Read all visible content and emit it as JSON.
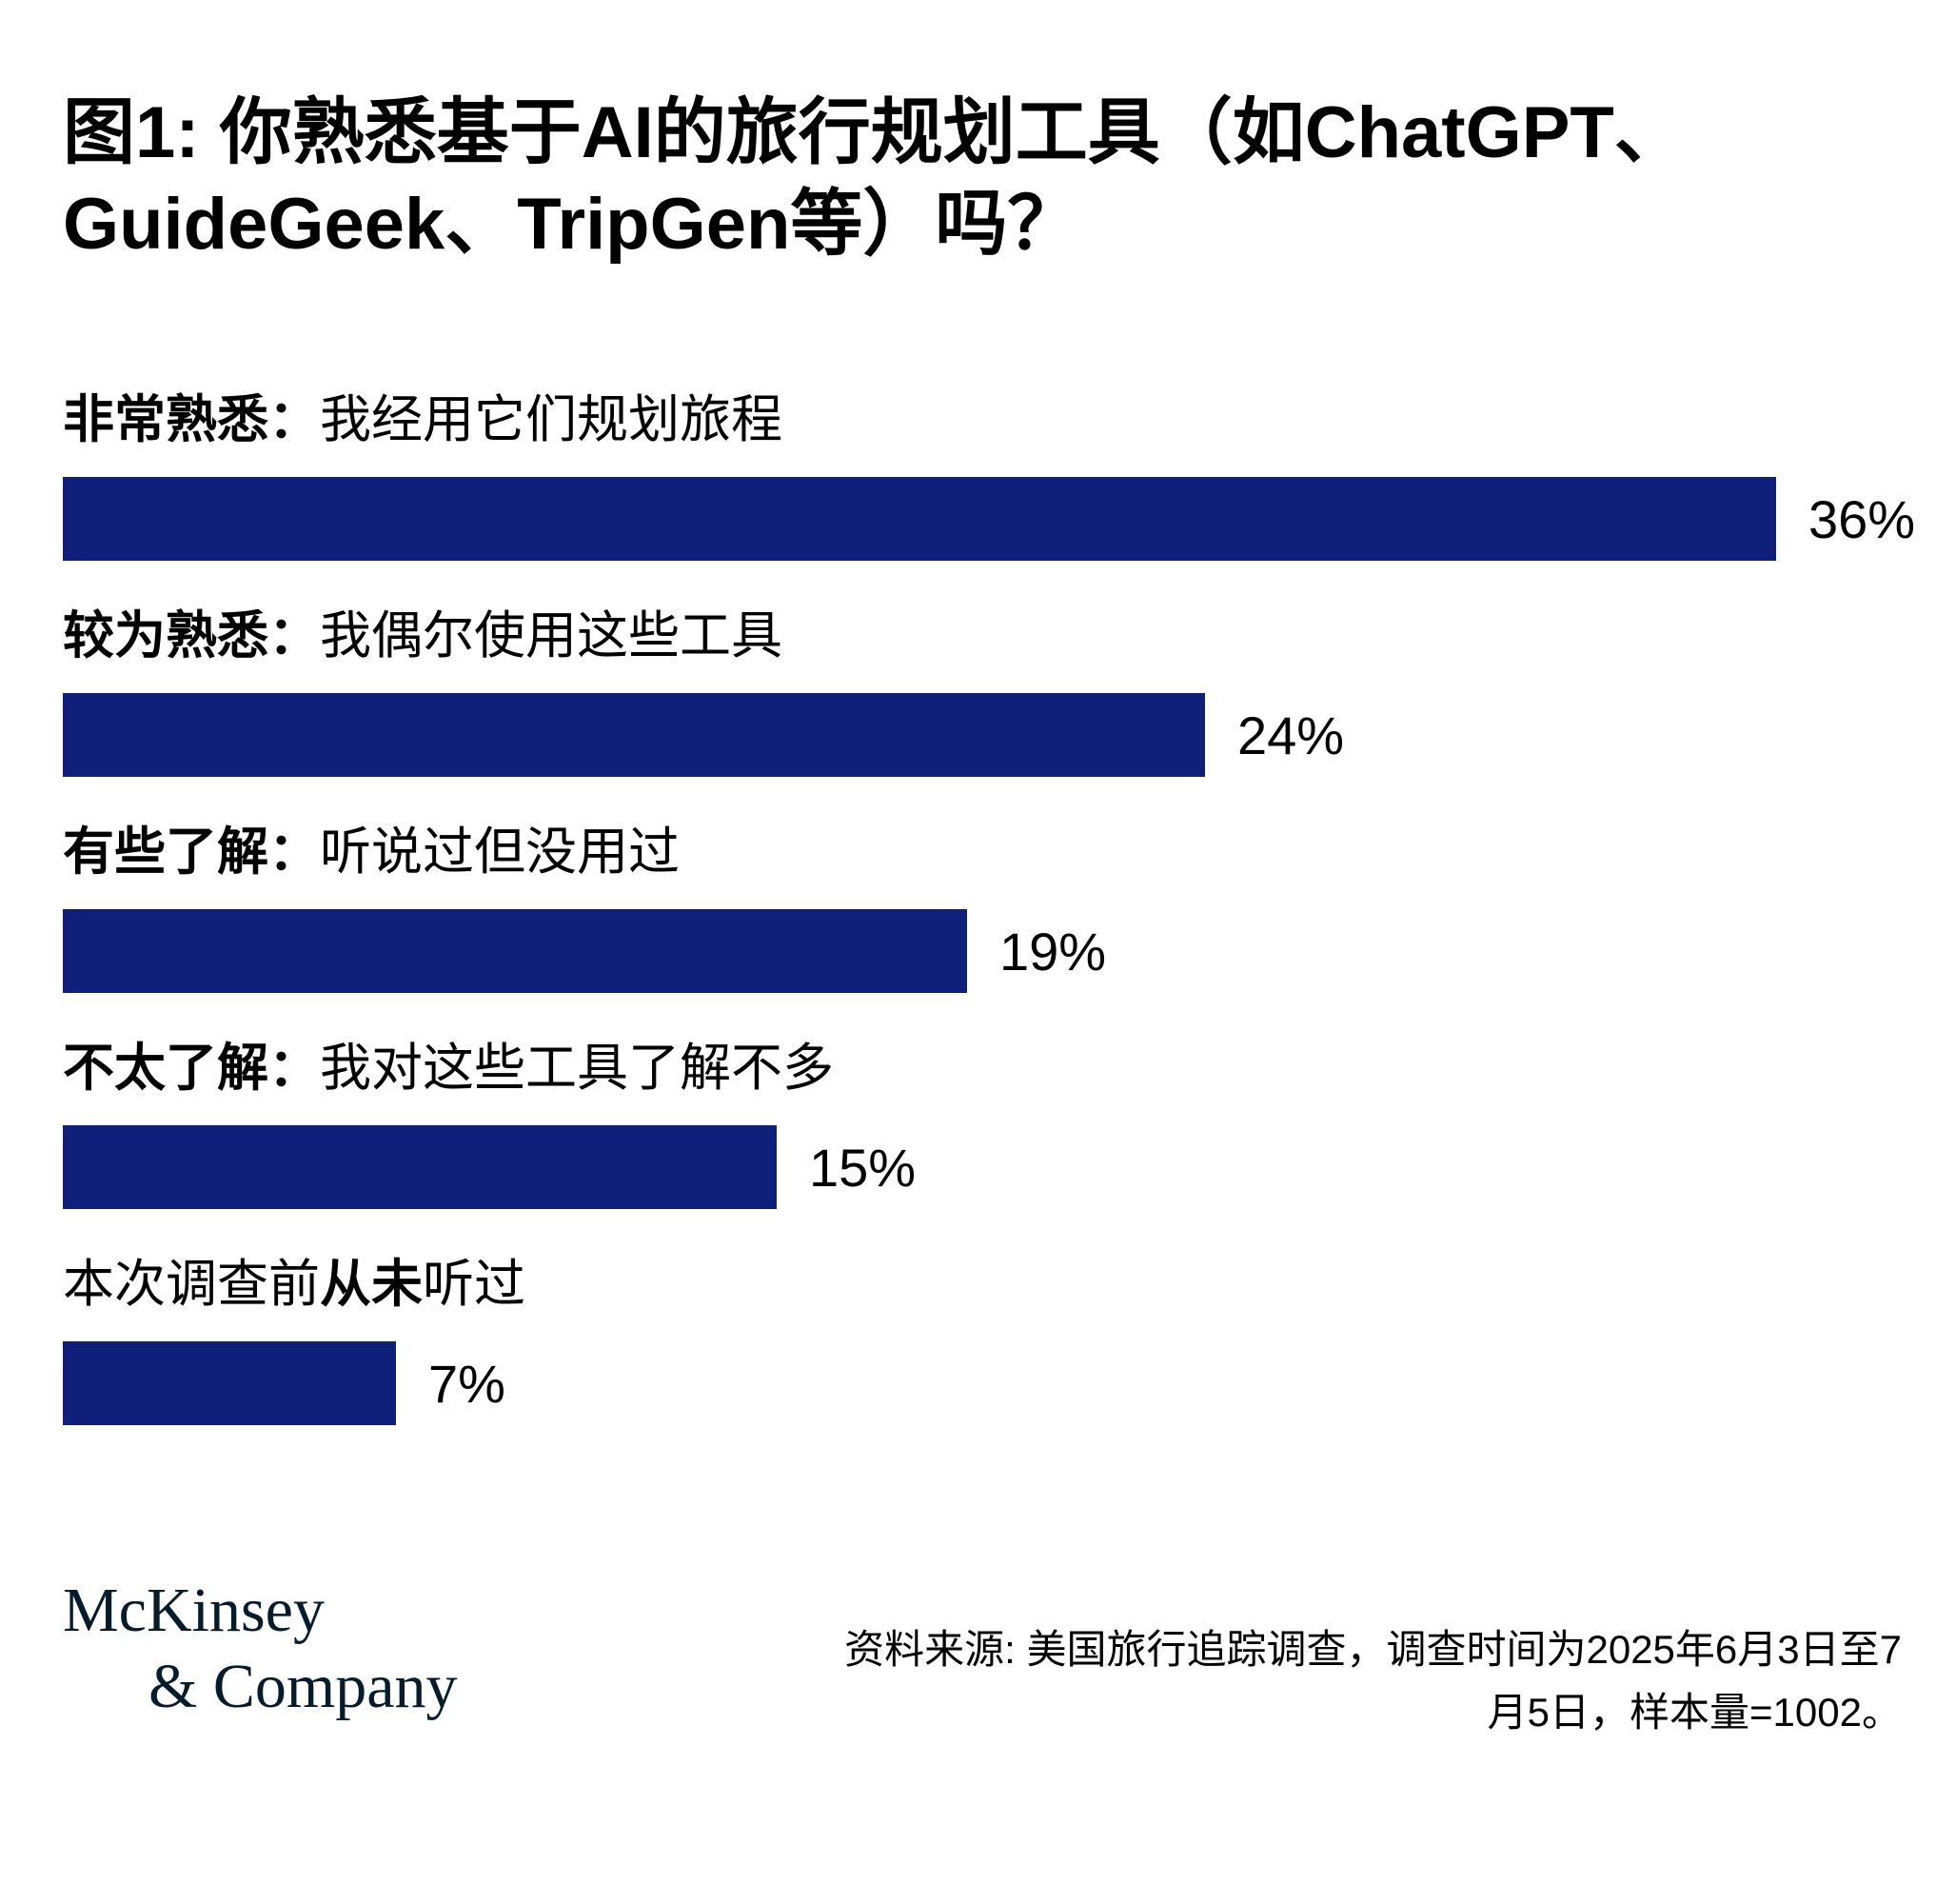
{
  "title_lines": [
    "图1: 你熟悉基于AI的旅行规划工具（如ChatGPT、",
    "GuideGeek、TripGen等）吗？"
  ],
  "chart_data": {
    "type": "bar",
    "orientation": "horizontal",
    "title": "图1: 你熟悉基于AI的旅行规划工具（如ChatGPT、GuideGeek、TripGen等）吗？",
    "categories": [
      "非常熟悉：我经用它们规划旅程",
      "较为熟悉：我偶尔使用这些工具",
      "有些了解：听说过但没用过",
      "不太了解：我对这些工具了解不多",
      "本次调查前从未听过"
    ],
    "values": [
      36,
      24,
      19,
      15,
      7
    ],
    "value_labels": [
      "36%",
      "24%",
      "19%",
      "15%",
      "7%"
    ],
    "xlim": [
      0,
      40
    ],
    "grid": false,
    "legend": "none",
    "bar_color": "#0e2079",
    "xlabel": "",
    "ylabel": ""
  },
  "rows": [
    {
      "segments": [
        {
          "text": "非常熟悉：",
          "bold": true
        },
        {
          "text": "我经用它们规划旅程",
          "bold": false
        }
      ],
      "value": 36,
      "pct": "36%"
    },
    {
      "segments": [
        {
          "text": "较为熟悉：",
          "bold": true
        },
        {
          "text": "我偶尔使用这些工具",
          "bold": false
        }
      ],
      "value": 24,
      "pct": "24%"
    },
    {
      "segments": [
        {
          "text": "有些了解：",
          "bold": true
        },
        {
          "text": "听说过但没用过",
          "bold": false
        }
      ],
      "value": 19,
      "pct": "19%"
    },
    {
      "segments": [
        {
          "text": "不太了解：",
          "bold": true
        },
        {
          "text": "我对这些工具了解不多",
          "bold": false
        }
      ],
      "value": 15,
      "pct": "15%"
    },
    {
      "segments": [
        {
          "text": "本次调查前",
          "bold": false
        },
        {
          "text": "从未",
          "bold": true
        },
        {
          "text": "听过",
          "bold": false
        }
      ],
      "value": 7,
      "pct": "7%"
    }
  ],
  "footer": {
    "logo_line1": "McKinsey",
    "logo_line2": "& Company",
    "logo_color": "#051c2c",
    "source": "资料来源: 美国旅行追踪调查，调查时间为2025年6月3日至7月5日，样本量=1002。"
  }
}
